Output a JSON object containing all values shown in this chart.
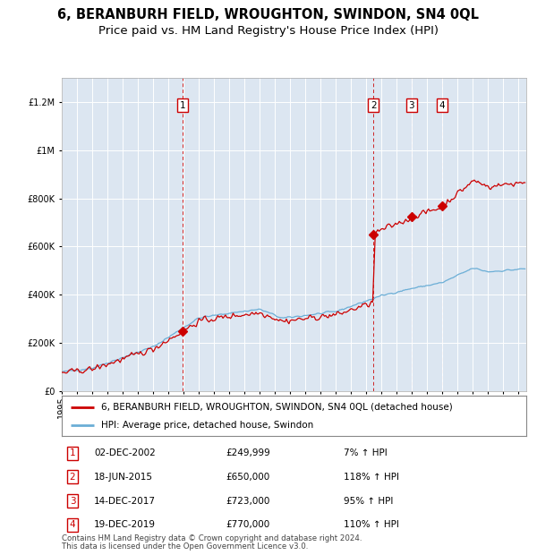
{
  "title": "6, BERANBURH FIELD, WROUGHTON, SWINDON, SN4 0QL",
  "subtitle": "Price paid vs. HM Land Registry's House Price Index (HPI)",
  "title_fontsize": 10.5,
  "subtitle_fontsize": 9.5,
  "plot_bg_color": "#dce6f1",
  "ylim": [
    0,
    1300000
  ],
  "yticks": [
    0,
    200000,
    400000,
    600000,
    800000,
    1000000,
    1200000
  ],
  "xlim_start": 1995.0,
  "xlim_end": 2025.5,
  "sales": [
    {
      "label": "1",
      "date": 2002.917,
      "price": 249999
    },
    {
      "label": "2",
      "date": 2015.458,
      "price": 650000
    },
    {
      "label": "3",
      "date": 2017.958,
      "price": 723000
    },
    {
      "label": "4",
      "date": 2019.958,
      "price": 770000
    }
  ],
  "legend_red": "6, BERANBURH FIELD, WROUGHTON, SWINDON, SN4 0QL (detached house)",
  "legend_blue": "HPI: Average price, detached house, Swindon",
  "footer1": "Contains HM Land Registry data © Crown copyright and database right 2024.",
  "footer2": "This data is licensed under the Open Government Licence v3.0.",
  "table_entries": [
    {
      "num": "1",
      "date": "02-DEC-2002",
      "price": "£249,999",
      "pct": "7% ↑ HPI"
    },
    {
      "num": "2",
      "date": "18-JUN-2015",
      "price": "£650,000",
      "pct": "118% ↑ HPI"
    },
    {
      "num": "3",
      "date": "14-DEC-2017",
      "price": "£723,000",
      "pct": "95% ↑ HPI"
    },
    {
      "num": "4",
      "date": "19-DEC-2019",
      "price": "£770,000",
      "pct": "110% ↑ HPI"
    }
  ],
  "red_color": "#cc0000",
  "blue_color": "#6baed6",
  "dashed_color": "#cc0000"
}
